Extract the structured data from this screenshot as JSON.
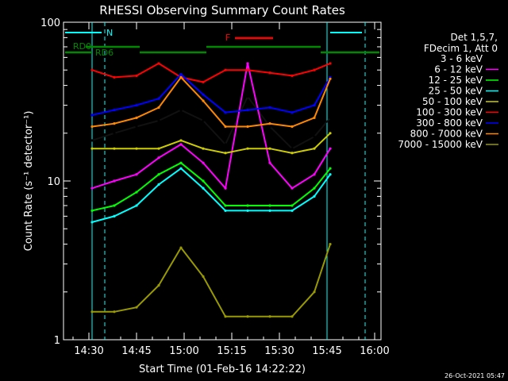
{
  "chart_data": {
    "type": "line",
    "title": "RHESSI Observing Summary Count Rates",
    "xlabel": "Start Time (01-Feb-16 14:22:22)",
    "ylabel": "Count Rate (s⁻¹ detector⁻¹)",
    "y_scale": "log",
    "ylim": [
      1,
      100
    ],
    "xlim": [
      "14:22",
      "16:02"
    ],
    "x_ticks": [
      "14:30",
      "14:45",
      "15:00",
      "15:15",
      "15:30",
      "15:45",
      "16:00"
    ],
    "y_ticks": [
      "1",
      "10",
      "100"
    ],
    "footer_date": "26-Oct-2021 05:47",
    "legend_header": [
      "Det 1,5,7,",
      "FDecim 1, Att 0"
    ],
    "legend_placement": "right",
    "annotations": {
      "night": "N",
      "flare": "F",
      "rd0": "RD0",
      "rd6": "RD6"
    },
    "colors": {
      "background": "#000000",
      "axes": "#ffffff",
      "night_bar": "#00ffff",
      "flare_bar": "#ff0000",
      "decim_bar": "#008800"
    },
    "series": [
      {
        "name": "3 - 6 keV",
        "color": "#000000",
        "x": [
          "14:31",
          "14:38",
          "14:45",
          "14:52",
          "14:59",
          "15:06",
          "15:13",
          "15:20",
          "15:27",
          "15:34",
          "15:41",
          "15:46"
        ],
        "values": [
          18,
          20,
          22,
          24,
          28,
          24,
          17,
          34,
          22,
          16,
          19,
          25
        ]
      },
      {
        "name": "6 - 12 keV",
        "color": "#ff00ff",
        "x": [
          "14:31",
          "14:38",
          "14:45",
          "14:52",
          "14:59",
          "15:06",
          "15:13",
          "15:20",
          "15:27",
          "15:34",
          "15:41",
          "15:46"
        ],
        "values": [
          9,
          10,
          11,
          14,
          17,
          13,
          9,
          55,
          13,
          9,
          11,
          16
        ]
      },
      {
        "name": "12 - 25 keV",
        "color": "#00ff00",
        "x": [
          "14:31",
          "14:38",
          "14:45",
          "14:52",
          "14:59",
          "15:06",
          "15:13",
          "15:20",
          "15:27",
          "15:34",
          "15:41",
          "15:46"
        ],
        "values": [
          6.5,
          7,
          8.5,
          11,
          13,
          10,
          7,
          7,
          7,
          7,
          9,
          12
        ]
      },
      {
        "name": "25 - 50 keV",
        "color": "#00ffff",
        "x": [
          "14:31",
          "14:38",
          "14:45",
          "14:52",
          "14:59",
          "15:06",
          "15:13",
          "15:20",
          "15:27",
          "15:34",
          "15:41",
          "15:46"
        ],
        "values": [
          5.5,
          6,
          7,
          9.5,
          12,
          9,
          6.5,
          6.5,
          6.5,
          6.5,
          8,
          11
        ]
      },
      {
        "name": "50 - 100 keV",
        "color": "#cccc00",
        "x": [
          "14:31",
          "14:38",
          "14:45",
          "14:52",
          "14:59",
          "15:06",
          "15:13",
          "15:20",
          "15:27",
          "15:34",
          "15:41",
          "15:46"
        ],
        "values": [
          16,
          16,
          16,
          16,
          18,
          16,
          15,
          16,
          16,
          15,
          16,
          20
        ]
      },
      {
        "name": "100 - 300 keV",
        "color": "#ff0000",
        "x": [
          "14:31",
          "14:38",
          "14:45",
          "14:52",
          "14:59",
          "15:06",
          "15:13",
          "15:20",
          "15:27",
          "15:34",
          "15:41",
          "15:46"
        ],
        "values": [
          50,
          45,
          46,
          55,
          45,
          42,
          50,
          50,
          48,
          46,
          50,
          55
        ]
      },
      {
        "name": "300 - 800 keV",
        "color": "#0000ff",
        "x": [
          "14:31",
          "14:38",
          "14:45",
          "14:52",
          "14:59",
          "15:06",
          "15:13",
          "15:20",
          "15:27",
          "15:34",
          "15:41",
          "15:46"
        ],
        "values": [
          26,
          28,
          30,
          33,
          47,
          35,
          27,
          28,
          29,
          27,
          30,
          45
        ]
      },
      {
        "name": "800 - 7000 keV",
        "color": "#ff8800",
        "x": [
          "14:31",
          "14:38",
          "14:45",
          "14:52",
          "14:59",
          "15:06",
          "15:13",
          "15:20",
          "15:27",
          "15:34",
          "15:41",
          "15:46"
        ],
        "values": [
          22,
          23,
          25,
          29,
          45,
          32,
          22,
          22,
          23,
          22,
          25,
          44
        ]
      },
      {
        "name": "7000 - 15000 keV",
        "color": "#999900",
        "x": [
          "14:31",
          "14:38",
          "14:45",
          "14:52",
          "14:59",
          "15:06",
          "15:13",
          "15:20",
          "15:27",
          "15:34",
          "15:41",
          "15:46"
        ],
        "values": [
          1.5,
          1.5,
          1.6,
          2.2,
          3.8,
          2.5,
          1.4,
          1.4,
          1.4,
          1.4,
          2,
          4
        ]
      }
    ]
  }
}
